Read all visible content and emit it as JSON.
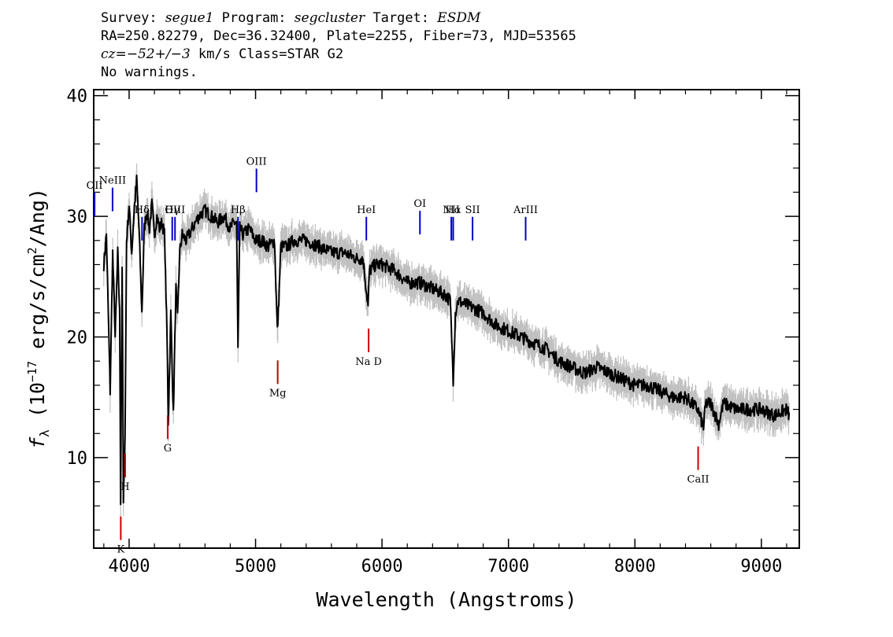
{
  "header": {
    "survey_label": "Survey:",
    "survey": "segue1",
    "program_label": "Program:",
    "program": "segcluster",
    "target_label": "Target:",
    "target": "ESDM",
    "line2": "RA=250.82279, Dec=36.32400, Plate=2255, Fiber=73, MJD=53565",
    "cz_label": "cz=",
    "cz_value": "−52+/−3",
    "cz_rest": " km/s Class=STAR G2",
    "line4": "No warnings."
  },
  "chart_data": {
    "type": "line",
    "xlabel": "Wavelength (Angstroms)",
    "ylabel_prefix": "f",
    "ylabel_sub": "λ",
    "ylabel_main": " (10",
    "ylabel_exp": "−17",
    "ylabel_rest": " erg/s/cm",
    "ylabel_exp2": "2",
    "ylabel_end": "/Ang)",
    "xlim": [
      3720,
      9300
    ],
    "ylim": [
      2.5,
      40.5
    ],
    "x_ticks": [
      4000,
      5000,
      6000,
      7000,
      8000,
      9000
    ],
    "x_tick_labels": [
      "4000",
      "5000",
      "6000",
      "7000",
      "8000",
      "9000"
    ],
    "y_ticks": [
      10,
      20,
      30,
      40
    ],
    "y_tick_labels": [
      "10",
      "20",
      "30",
      "40"
    ],
    "series": [
      {
        "color": "#000000",
        "error_color": "#c0c0c0",
        "x": [
          3800,
          3820,
          3835,
          3850,
          3870,
          3890,
          3910,
          3925,
          3933,
          3945,
          3955,
          3968,
          3980,
          4000,
          4020,
          4040,
          4060,
          4080,
          4101,
          4120,
          4140,
          4160,
          4180,
          4200,
          4220,
          4240,
          4260,
          4280,
          4300,
          4310,
          4330,
          4350,
          4370,
          4383,
          4400,
          4420,
          4450,
          4500,
          4550,
          4600,
          4650,
          4700,
          4750,
          4800,
          4830,
          4850,
          4861,
          4875,
          4900,
          4950,
          5000,
          5050,
          5100,
          5150,
          5172,
          5180,
          5200,
          5250,
          5300,
          5400,
          5500,
          5600,
          5700,
          5800,
          5850,
          5890,
          5900,
          5950,
          6000,
          6100,
          6200,
          6300,
          6400,
          6500,
          6540,
          6563,
          6580,
          6600,
          6700,
          6800,
          6900,
          7000,
          7100,
          7200,
          7300,
          7400,
          7500,
          7600,
          7700,
          7800,
          7900,
          8000,
          8100,
          8200,
          8300,
          8400,
          8498,
          8542,
          8560,
          8600,
          8662,
          8700,
          8800,
          8900,
          9000,
          9100,
          9200,
          9220
        ],
        "values": [
          26.0,
          28.5,
          22.0,
          15.5,
          27.0,
          20.0,
          27.0,
          22.0,
          6.5,
          26.0,
          6.0,
          12.0,
          28.0,
          31.0,
          27.0,
          30.5,
          33.0,
          28.5,
          22.0,
          29.0,
          30.5,
          29.0,
          31.0,
          28.5,
          30.0,
          29.0,
          29.5,
          28.5,
          20.0,
          13.0,
          22.0,
          13.5,
          24.0,
          21.5,
          27.0,
          28.5,
          28.0,
          29.0,
          30.0,
          30.5,
          30.0,
          29.5,
          30.0,
          29.0,
          29.5,
          29.5,
          19.0,
          29.0,
          28.5,
          29.0,
          28.0,
          28.0,
          27.5,
          28.0,
          20.5,
          22.0,
          27.5,
          27.5,
          28.0,
          28.0,
          27.5,
          27.0,
          27.0,
          26.5,
          26.5,
          22.5,
          25.5,
          26.0,
          26.0,
          25.5,
          24.5,
          24.5,
          24.0,
          23.5,
          23.0,
          16.5,
          22.0,
          23.0,
          22.5,
          22.0,
          21.0,
          20.5,
          20.0,
          19.5,
          19.0,
          18.0,
          17.5,
          17.0,
          17.5,
          17.0,
          16.5,
          16.0,
          16.0,
          15.5,
          15.0,
          15.0,
          14.0,
          12.5,
          14.5,
          14.5,
          12.8,
          14.5,
          14.0,
          14.0,
          14.0,
          13.5,
          14.0,
          13.5
        ]
      }
    ],
    "emission_lines": [
      {
        "label": "OII",
        "wl": 3727
      },
      {
        "label": "NeIII",
        "wl": 3869
      },
      {
        "label": "Hδ",
        "wl": 4102
      },
      {
        "label": "Hγ",
        "wl": 4341
      },
      {
        "label": "OIII",
        "wl": 4363
      },
      {
        "label": "Hβ",
        "wl": 4861
      },
      {
        "label": "OIII",
        "wl": 5007
      },
      {
        "label": "HeI",
        "wl": 5876
      },
      {
        "label": "OI",
        "wl": 6300
      },
      {
        "label": "NII",
        "wl": 6548
      },
      {
        "label": "Hα",
        "wl": 6563
      },
      {
        "label": "SII",
        "wl": 6716
      },
      {
        "label": "ArIII",
        "wl": 7136
      }
    ],
    "absorption_lines": [
      {
        "label": "K",
        "wl": 3934
      },
      {
        "label": "H",
        "wl": 3969
      },
      {
        "label": "G",
        "wl": 4305
      },
      {
        "label": "Mg",
        "wl": 5175
      },
      {
        "label": "Na D",
        "wl": 5894
      },
      {
        "label": "CaII",
        "wl": 8500
      }
    ]
  }
}
